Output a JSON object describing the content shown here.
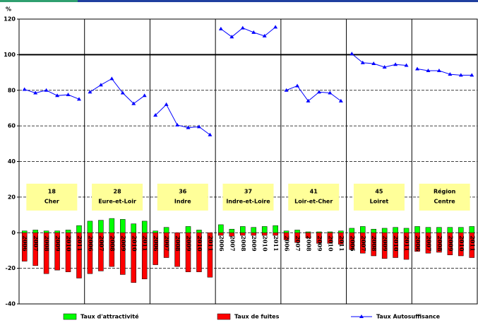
{
  "chart_data": {
    "type": "bar",
    "y_label": "%",
    "ylim": [
      -40,
      120
    ],
    "yticks": [
      -40,
      -20,
      0,
      20,
      40,
      60,
      80,
      100,
      120
    ],
    "grid": true,
    "categories": [
      "2006",
      "2007",
      "2008",
      "2009",
      "2010",
      "2011",
      "2006",
      "2007",
      "2008",
      "2009",
      "2010",
      "2011",
      "2006",
      "2007",
      "2008",
      "2009",
      "2010",
      "2011",
      "2006",
      "2007",
      "2008",
      "2009",
      "2010",
      "2011",
      "2006",
      "2007",
      "2008",
      "2009",
      "2010",
      "2011",
      "2006",
      "2007",
      "2008",
      "2009",
      "2010",
      "2011",
      "2006",
      "2007",
      "2008",
      "2009",
      "2010",
      "2011"
    ],
    "groups": [
      {
        "code": "18",
        "name": "Cher"
      },
      {
        "code": "28",
        "name": "Eure-et-Loir"
      },
      {
        "code": "36",
        "name": "Indre"
      },
      {
        "code": "37",
        "name": "Indre-et-Loire"
      },
      {
        "code": "41",
        "name": "Loir-et-Cher"
      },
      {
        "code": "45",
        "name": "Loiret"
      },
      {
        "code": "Région",
        "name": "Centre"
      }
    ],
    "series": [
      {
        "name": "Taux d'attractivité",
        "color": "#00ff00",
        "type": "bar",
        "values": [
          1,
          1.5,
          1,
          1,
          1.5,
          4,
          6.5,
          7,
          8,
          7.5,
          5,
          6.5,
          1,
          3,
          0,
          3.5,
          1.5,
          0,
          4.5,
          2,
          3.5,
          3,
          3.5,
          4,
          1,
          1.5,
          0.5,
          0.5,
          0.5,
          1,
          2.5,
          3.5,
          2,
          2.5,
          3,
          2.5,
          3.5,
          3,
          3,
          3,
          3,
          3.5
        ]
      },
      {
        "name": "Taux de fuites",
        "color": "#ff0000",
        "type": "bar",
        "values": [
          -16,
          -18.5,
          -23,
          -21,
          -22,
          -25.5,
          -23,
          -21.5,
          -19,
          -23.5,
          -28,
          -26,
          -18,
          -14,
          -19,
          -22,
          -22,
          -25,
          -1.5,
          -2,
          -1.5,
          -1.5,
          -1.5,
          -1.5,
          -4,
          -5.5,
          -3,
          -6,
          -6,
          -6.5,
          -9.5,
          -11.5,
          -13,
          -14.5,
          -14,
          -15,
          -10.5,
          -11.5,
          -11,
          -12.5,
          -13,
          -14
        ]
      },
      {
        "name": "Taux Autosuffisance",
        "color": "#0000ff",
        "type": "line",
        "values": [
          80.5,
          78.5,
          80,
          77,
          77.5,
          75,
          79,
          83,
          86.5,
          78.5,
          72.5,
          77,
          66,
          72,
          60.5,
          59,
          59.5,
          55,
          114.5,
          110,
          115,
          112.5,
          110.5,
          115.5,
          80,
          82.5,
          74,
          79,
          78.5,
          74,
          100.5,
          95.5,
          95,
          93,
          94.5,
          94,
          92,
          91,
          91,
          89,
          88.5,
          88.5
        ]
      }
    ]
  }
}
